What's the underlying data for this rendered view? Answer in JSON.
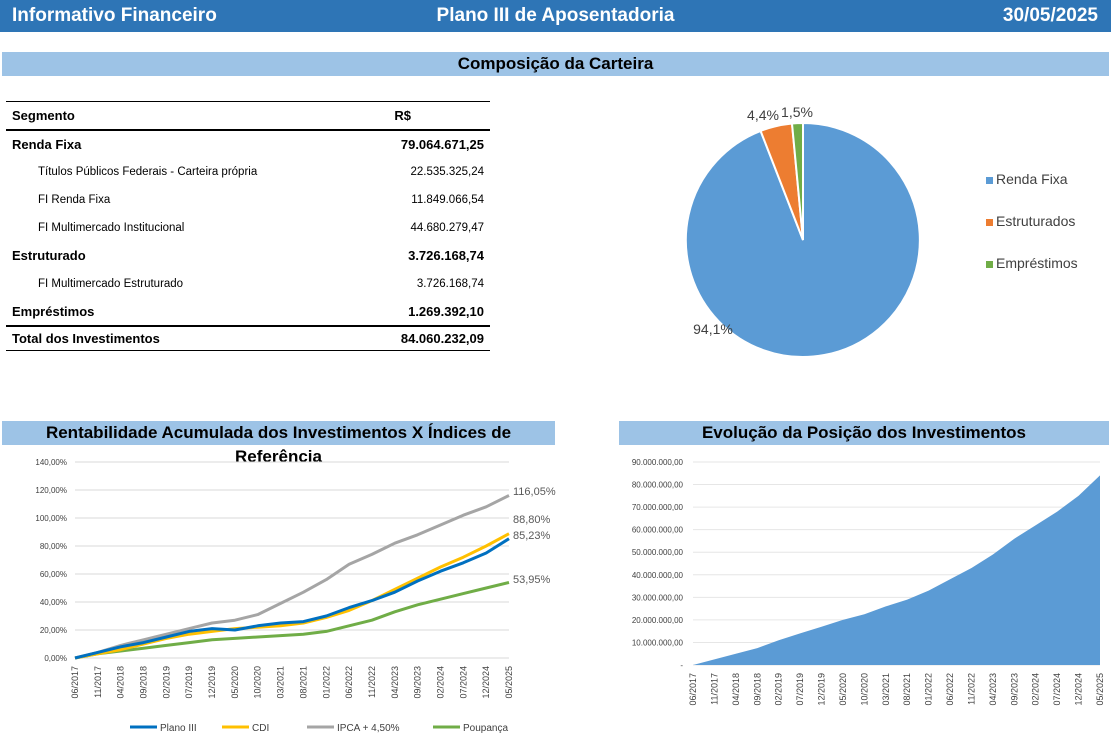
{
  "header": {
    "left": "Informativo Financeiro",
    "center": "Plano III de Aposentadoria",
    "right": "30/05/2025"
  },
  "composition": {
    "title": "Composição da Carteira",
    "table": {
      "col_segment": "Segmento",
      "col_value": "R$",
      "rows": [
        {
          "type": "seg",
          "label": "Renda Fixa",
          "value": "79.064.671,25"
        },
        {
          "type": "sub",
          "label": "Títulos Públicos Federais - Carteira própria",
          "value": "22.535.325,24"
        },
        {
          "type": "sub",
          "label": "FI Renda Fixa",
          "value": "11.849.066,54"
        },
        {
          "type": "sub",
          "label": "FI Multimercado Institucional",
          "value": "44.680.279,47"
        },
        {
          "type": "seg",
          "label": "Estruturado",
          "value": "3.726.168,74"
        },
        {
          "type": "sub",
          "label": "FI Multimercado Estruturado",
          "value": "3.726.168,74"
        },
        {
          "type": "seg",
          "label": "Empréstimos",
          "value": "1.269.392,10"
        }
      ],
      "total_label": "Total dos Investimentos",
      "total_value": "84.060.232,09"
    }
  },
  "returns": {
    "title": "Rentabilidade Acumulada dos Investimentos X Índices de Referência"
  },
  "position": {
    "title": "Evolução da Posição dos Investimentos"
  },
  "chart_data": [
    {
      "type": "pie",
      "labels": [
        "Renda Fixa",
        "Estruturados",
        "Empréstimos"
      ],
      "values": [
        94.1,
        4.4,
        1.5
      ],
      "data_labels": [
        "94,1%",
        "4,4%",
        "1,5%"
      ],
      "colors": [
        "#5b9bd5",
        "#ed7d31",
        "#70ad47"
      ],
      "legend": "right"
    },
    {
      "type": "line",
      "title": "Rentabilidade Acumulada dos Investimentos X Índices de Referência",
      "x": [
        "06/2017",
        "11/2017",
        "04/2018",
        "09/2018",
        "02/2019",
        "07/2019",
        "12/2019",
        "05/2020",
        "10/2020",
        "03/2021",
        "08/2021",
        "01/2022",
        "06/2022",
        "11/2022",
        "04/2023",
        "09/2023",
        "02/2024",
        "07/2024",
        "12/2024",
        "05/2025"
      ],
      "ylim": [
        0,
        140
      ],
      "yticks": [
        "0,00%",
        "20,00%",
        "40,00%",
        "60,00%",
        "80,00%",
        "100,00%",
        "120,00%",
        "140,00%"
      ],
      "legend": "bottom",
      "series": [
        {
          "name": "Plano III",
          "color": "#0070c0",
          "end_label": "85,23%",
          "values": [
            0,
            4,
            8,
            11,
            15,
            19,
            21,
            20,
            23,
            25,
            26,
            30,
            36,
            41,
            47,
            55,
            62,
            68,
            75,
            85.23
          ]
        },
        {
          "name": "CDI",
          "color": "#ffc000",
          "end_label": "88,80%",
          "values": [
            0,
            3,
            6,
            10,
            14,
            17,
            19,
            21,
            22,
            23,
            25,
            29,
            34,
            41,
            49,
            57,
            65,
            72,
            80,
            88.8
          ]
        },
        {
          "name": "IPCA + 4,50%",
          "color": "#a5a5a5",
          "end_label": "116,05%",
          "values": [
            0,
            4,
            9,
            13,
            17,
            21,
            25,
            27,
            31,
            39,
            47,
            56,
            67,
            74,
            82,
            88,
            95,
            102,
            108,
            116.05
          ]
        },
        {
          "name": "Poupança",
          "color": "#70ad47",
          "end_label": "53,95%",
          "values": [
            0,
            3,
            5,
            7,
            9,
            11,
            13,
            14,
            15,
            16,
            17,
            19,
            23,
            27,
            33,
            38,
            42,
            46,
            50,
            53.95
          ]
        }
      ]
    },
    {
      "type": "area",
      "title": "Evolução da Posição dos Investimentos",
      "x": [
        "06/2017",
        "11/2017",
        "04/2018",
        "09/2018",
        "02/2019",
        "07/2019",
        "12/2019",
        "05/2020",
        "10/2020",
        "03/2021",
        "08/2021",
        "01/2022",
        "06/2022",
        "11/2022",
        "04/2023",
        "09/2023",
        "02/2024",
        "07/2024",
        "12/2024",
        "05/2025"
      ],
      "ylim": [
        0,
        90000000
      ],
      "yticks": [
        "-",
        "10.000.000,00",
        "20.000.000,00",
        "30.000.000,00",
        "40.000.000,00",
        "50.000.000,00",
        "60.000.000,00",
        "70.000.000,00",
        "80.000.000,00",
        "90.000.000,00"
      ],
      "color": "#5b9bd5",
      "values": [
        0,
        2500000,
        5000000,
        7500000,
        11000000,
        14000000,
        17000000,
        20000000,
        22500000,
        26000000,
        29000000,
        33000000,
        38000000,
        43000000,
        49000000,
        56000000,
        62000000,
        68000000,
        75000000,
        84060232
      ]
    }
  ]
}
